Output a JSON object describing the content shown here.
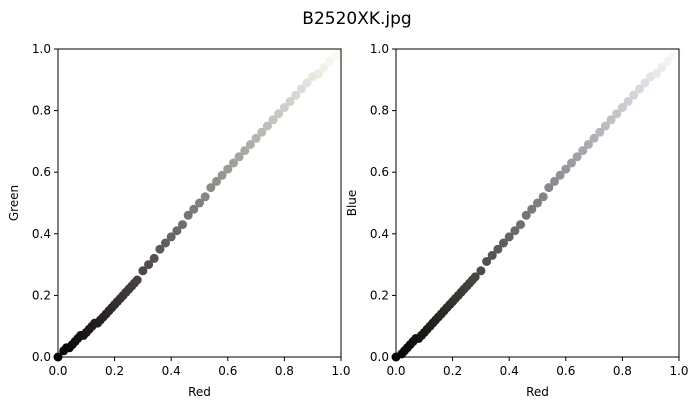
{
  "figure": {
    "title": "B2520XK.jpg"
  },
  "chart_data": [
    {
      "type": "scatter",
      "xlabel": "Red",
      "ylabel": "Green",
      "xlim": [
        0.0,
        1.0
      ],
      "ylim": [
        0.0,
        1.0
      ],
      "xticks": [
        "0.0",
        "0.2",
        "0.4",
        "0.6",
        "0.8",
        "1.0"
      ],
      "yticks": [
        "0.0",
        "0.2",
        "0.4",
        "0.6",
        "0.8",
        "1.0"
      ],
      "grid": false,
      "point_color": "pixel rgb",
      "x": [
        0.0,
        0.02,
        0.03,
        0.04,
        0.05,
        0.06,
        0.07,
        0.08,
        0.09,
        0.1,
        0.11,
        0.12,
        0.13,
        0.14,
        0.15,
        0.16,
        0.17,
        0.18,
        0.19,
        0.2,
        0.21,
        0.22,
        0.23,
        0.24,
        0.25,
        0.26,
        0.27,
        0.28,
        0.3,
        0.32,
        0.34,
        0.36,
        0.38,
        0.4,
        0.42,
        0.44,
        0.46,
        0.48,
        0.5,
        0.52,
        0.54,
        0.56,
        0.58,
        0.6,
        0.62,
        0.64,
        0.66,
        0.68,
        0.7,
        0.72,
        0.74,
        0.76,
        0.78,
        0.8,
        0.82,
        0.84,
        0.86,
        0.88,
        0.9,
        0.92,
        0.94,
        0.96,
        0.98,
        1.0
      ],
      "y": [
        0.0,
        0.02,
        0.03,
        0.03,
        0.04,
        0.05,
        0.06,
        0.07,
        0.07,
        0.08,
        0.09,
        0.1,
        0.11,
        0.11,
        0.12,
        0.13,
        0.14,
        0.15,
        0.16,
        0.17,
        0.18,
        0.19,
        0.2,
        0.21,
        0.22,
        0.23,
        0.24,
        0.25,
        0.28,
        0.3,
        0.32,
        0.35,
        0.37,
        0.39,
        0.41,
        0.43,
        0.46,
        0.48,
        0.5,
        0.52,
        0.55,
        0.57,
        0.59,
        0.61,
        0.63,
        0.65,
        0.67,
        0.69,
        0.71,
        0.73,
        0.75,
        0.77,
        0.79,
        0.81,
        0.83,
        0.85,
        0.87,
        0.89,
        0.91,
        0.92,
        0.94,
        0.96,
        0.98,
        0.99
      ]
    },
    {
      "type": "scatter",
      "xlabel": "Red",
      "ylabel": "Blue",
      "xlim": [
        0.0,
        1.0
      ],
      "ylim": [
        0.0,
        1.0
      ],
      "xticks": [
        "0.0",
        "0.2",
        "0.4",
        "0.6",
        "0.8",
        "1.0"
      ],
      "yticks": [
        "0.0",
        "0.2",
        "0.4",
        "0.6",
        "0.8",
        "1.0"
      ],
      "grid": false,
      "point_color": "pixel rgb",
      "x": [
        0.0,
        0.02,
        0.03,
        0.04,
        0.05,
        0.06,
        0.07,
        0.08,
        0.09,
        0.1,
        0.11,
        0.12,
        0.13,
        0.14,
        0.15,
        0.16,
        0.17,
        0.18,
        0.19,
        0.2,
        0.21,
        0.22,
        0.23,
        0.24,
        0.25,
        0.26,
        0.27,
        0.28,
        0.3,
        0.32,
        0.34,
        0.36,
        0.38,
        0.4,
        0.42,
        0.44,
        0.46,
        0.48,
        0.5,
        0.52,
        0.54,
        0.56,
        0.58,
        0.6,
        0.62,
        0.64,
        0.66,
        0.68,
        0.7,
        0.72,
        0.74,
        0.76,
        0.78,
        0.8,
        0.82,
        0.84,
        0.86,
        0.88,
        0.9,
        0.92,
        0.94,
        0.96,
        0.98,
        1.0
      ],
      "y": [
        0.0,
        0.01,
        0.02,
        0.03,
        0.04,
        0.05,
        0.06,
        0.06,
        0.07,
        0.08,
        0.09,
        0.1,
        0.11,
        0.12,
        0.13,
        0.14,
        0.15,
        0.16,
        0.17,
        0.18,
        0.19,
        0.2,
        0.21,
        0.22,
        0.23,
        0.24,
        0.25,
        0.26,
        0.28,
        0.31,
        0.33,
        0.35,
        0.37,
        0.39,
        0.41,
        0.43,
        0.46,
        0.48,
        0.5,
        0.52,
        0.55,
        0.57,
        0.59,
        0.61,
        0.63,
        0.65,
        0.67,
        0.69,
        0.71,
        0.73,
        0.75,
        0.77,
        0.79,
        0.81,
        0.83,
        0.85,
        0.87,
        0.89,
        0.91,
        0.92,
        0.94,
        0.96,
        0.98,
        0.99
      ]
    }
  ]
}
